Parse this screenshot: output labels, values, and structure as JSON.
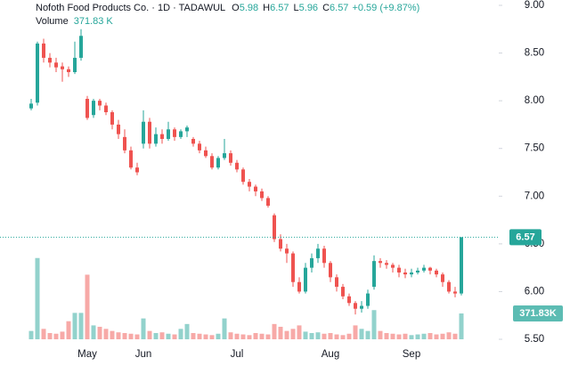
{
  "chart_data": {
    "type": "candlestick",
    "title": "Nofoth Food Products Co. · 1D · TADAWUL",
    "ohlc_keys": [
      "O",
      "H",
      "L",
      "C"
    ],
    "change": "+0.59 (+9.87%)",
    "volume_title": "Volume",
    "volume_label": "371.83 K",
    "volume_badge": "371.83K",
    "up_color": "#26a69a",
    "down_color": "#ef5350",
    "categories": [
      null,
      null,
      null,
      null,
      null,
      null,
      null,
      null,
      null,
      "May",
      null,
      null,
      null,
      null,
      null,
      null,
      null,
      null,
      "Jun",
      null,
      null,
      null,
      null,
      null,
      null,
      null,
      null,
      null,
      null,
      null,
      null,
      null,
      null,
      "Jul",
      null,
      null,
      null,
      null,
      null,
      null,
      null,
      null,
      null,
      null,
      null,
      null,
      null,
      null,
      "Aug",
      null,
      null,
      null,
      null,
      null,
      null,
      null,
      null,
      null,
      null,
      null,
      null,
      "Sep",
      null,
      null,
      null,
      null,
      null,
      null,
      null,
      null
    ],
    "ohlc": [
      [
        7.92,
        8.02,
        7.9,
        7.97
      ],
      [
        7.98,
        8.62,
        7.95,
        8.6
      ],
      [
        8.6,
        8.65,
        8.4,
        8.45
      ],
      [
        8.45,
        8.5,
        8.35,
        8.4
      ],
      [
        8.4,
        8.45,
        8.3,
        8.35
      ],
      [
        8.36,
        8.4,
        8.2,
        8.33
      ],
      [
        8.33,
        8.36,
        8.25,
        8.3
      ],
      [
        8.3,
        8.62,
        8.28,
        8.45
      ],
      [
        8.45,
        8.75,
        8.42,
        8.68
      ],
      [
        8.02,
        8.05,
        7.8,
        7.82
      ],
      [
        7.85,
        8.02,
        7.82,
        8.0
      ],
      [
        8.0,
        8.02,
        7.9,
        7.95
      ],
      [
        7.95,
        7.98,
        7.85,
        7.88
      ],
      [
        7.88,
        7.9,
        7.7,
        7.75
      ],
      [
        7.75,
        7.8,
        7.6,
        7.65
      ],
      [
        7.62,
        7.7,
        7.45,
        7.48
      ],
      [
        7.48,
        7.52,
        7.28,
        7.3
      ],
      [
        7.3,
        7.35,
        7.22,
        7.25
      ],
      [
        7.55,
        7.9,
        7.5,
        7.78
      ],
      [
        7.78,
        7.82,
        7.5,
        7.55
      ],
      [
        7.55,
        7.72,
        7.52,
        7.65
      ],
      [
        7.65,
        7.7,
        7.55,
        7.6
      ],
      [
        7.6,
        7.78,
        7.58,
        7.7
      ],
      [
        7.7,
        7.72,
        7.58,
        7.62
      ],
      [
        7.62,
        7.7,
        7.6,
        7.68
      ],
      [
        7.68,
        7.74,
        7.62,
        7.72
      ],
      [
        7.6,
        7.62,
        7.52,
        7.55
      ],
      [
        7.55,
        7.58,
        7.45,
        7.48
      ],
      [
        7.48,
        7.52,
        7.4,
        7.42
      ],
      [
        7.42,
        7.45,
        7.28,
        7.3
      ],
      [
        7.3,
        7.42,
        7.28,
        7.4
      ],
      [
        7.4,
        7.6,
        7.38,
        7.45
      ],
      [
        7.45,
        7.48,
        7.32,
        7.35
      ],
      [
        7.35,
        7.38,
        7.25,
        7.28
      ],
      [
        7.28,
        7.3,
        7.12,
        7.15
      ],
      [
        7.15,
        7.18,
        7.05,
        7.1
      ],
      [
        7.1,
        7.12,
        7.0,
        7.05
      ],
      [
        7.05,
        7.08,
        6.95,
        6.98
      ],
      [
        6.98,
        7.0,
        6.88,
        6.9
      ],
      [
        6.8,
        6.82,
        6.52,
        6.55
      ],
      [
        6.55,
        6.6,
        6.42,
        6.45
      ],
      [
        6.45,
        6.5,
        6.3,
        6.4
      ],
      [
        6.4,
        6.42,
        6.05,
        6.1
      ],
      [
        6.1,
        6.15,
        5.98,
        6.0
      ],
      [
        6.0,
        6.3,
        5.98,
        6.25
      ],
      [
        6.25,
        6.4,
        6.2,
        6.35
      ],
      [
        6.35,
        6.5,
        6.3,
        6.45
      ],
      [
        6.45,
        6.48,
        6.25,
        6.3
      ],
      [
        6.3,
        6.32,
        6.1,
        6.15
      ],
      [
        6.15,
        6.18,
        6.0,
        6.05
      ],
      [
        6.05,
        6.08,
        5.92,
        5.95
      ],
      [
        5.95,
        5.98,
        5.85,
        5.88
      ],
      [
        5.88,
        5.9,
        5.76,
        5.82
      ],
      [
        5.82,
        5.9,
        5.78,
        5.85
      ],
      [
        5.85,
        6.02,
        5.82,
        5.98
      ],
      [
        6.05,
        6.38,
        6.02,
        6.32
      ],
      [
        6.32,
        6.35,
        6.25,
        6.3
      ],
      [
        6.3,
        6.33,
        6.24,
        6.28
      ],
      [
        6.28,
        6.3,
        6.2,
        6.25
      ],
      [
        6.25,
        6.28,
        6.15,
        6.2
      ],
      [
        6.2,
        6.24,
        6.14,
        6.18
      ],
      [
        6.18,
        6.24,
        6.15,
        6.2
      ],
      [
        6.2,
        6.25,
        6.18,
        6.22
      ],
      [
        6.22,
        6.28,
        6.2,
        6.25
      ],
      [
        6.25,
        6.26,
        6.18,
        6.22
      ],
      [
        6.22,
        6.24,
        6.15,
        6.18
      ],
      [
        6.18,
        6.2,
        6.05,
        6.1
      ],
      [
        6.1,
        6.12,
        5.98,
        6.0
      ],
      [
        6.0,
        6.05,
        5.94,
        5.98
      ],
      [
        5.98,
        6.57,
        5.96,
        6.57
      ]
    ],
    "volume": [
      120,
      1170,
      150,
      90,
      80,
      110,
      260,
      380,
      380,
      930,
      200,
      180,
      150,
      120,
      100,
      90,
      80,
      70,
      300,
      120,
      90,
      100,
      80,
      70,
      150,
      220,
      90,
      80,
      70,
      60,
      80,
      300,
      100,
      80,
      70,
      60,
      90,
      80,
      70,
      220,
      180,
      120,
      150,
      200,
      110,
      90,
      100,
      80,
      90,
      70,
      60,
      80,
      200,
      150,
      120,
      420,
      120,
      90,
      80,
      70,
      80,
      60,
      70,
      80,
      90,
      70,
      80,
      100,
      80,
      371.83
    ],
    "ylim": [
      5.5,
      9.0
    ],
    "yticks": [
      {
        "value": 5.5,
        "label": "5.50"
      },
      {
        "value": 6,
        "label": "6.00"
      },
      {
        "value": 6.5,
        "label": "6.50"
      },
      {
        "value": 7,
        "label": "7.00"
      },
      {
        "value": 7.5,
        "label": "7.50"
      },
      {
        "value": 8,
        "label": "8.00"
      },
      {
        "value": 8.5,
        "label": "8.50"
      },
      {
        "value": 9,
        "label": "9.00"
      }
    ]
  }
}
